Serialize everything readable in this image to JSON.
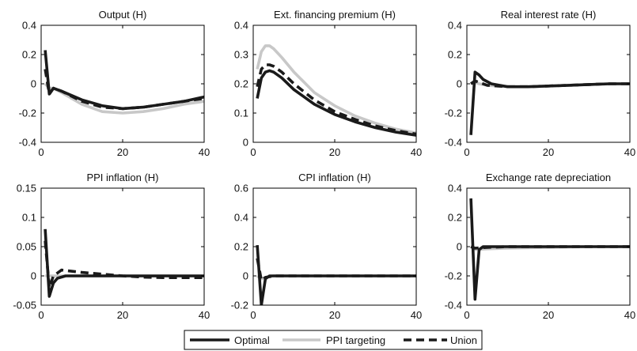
{
  "chart_data": [
    {
      "type": "line",
      "title": "Output (H)",
      "xlim": [
        0,
        40
      ],
      "ylim": [
        -0.4,
        0.4
      ],
      "xticks": [
        0,
        20,
        40
      ],
      "yticks": [
        -0.4,
        -0.2,
        0,
        0.2,
        0.4
      ],
      "ytick_labels": [
        "-0.4",
        "-0.2",
        "0",
        "0.2",
        "0.4"
      ],
      "series": [
        {
          "name": "Optimal",
          "points": [
            [
              1,
              0.23
            ],
            [
              2,
              -0.07
            ],
            [
              3,
              -0.03
            ],
            [
              5,
              -0.05
            ],
            [
              10,
              -0.11
            ],
            [
              15,
              -0.15
            ],
            [
              20,
              -0.17
            ],
            [
              25,
              -0.16
            ],
            [
              30,
              -0.14
            ],
            [
              35,
              -0.12
            ],
            [
              40,
              -0.09
            ]
          ]
        },
        {
          "name": "PPI targeting",
          "points": [
            [
              1,
              0.0
            ],
            [
              2,
              -0.03
            ],
            [
              3,
              -0.03
            ],
            [
              5,
              -0.06
            ],
            [
              10,
              -0.14
            ],
            [
              15,
              -0.19
            ],
            [
              20,
              -0.2
            ],
            [
              25,
              -0.19
            ],
            [
              30,
              -0.17
            ],
            [
              35,
              -0.14
            ],
            [
              40,
              -0.12
            ]
          ]
        },
        {
          "name": "Union",
          "points": [
            [
              1,
              0.1
            ],
            [
              2,
              -0.07
            ],
            [
              3,
              -0.03
            ],
            [
              5,
              -0.05
            ],
            [
              10,
              -0.12
            ],
            [
              15,
              -0.16
            ],
            [
              20,
              -0.17
            ],
            [
              25,
              -0.16
            ],
            [
              30,
              -0.14
            ],
            [
              35,
              -0.12
            ],
            [
              40,
              -0.1
            ]
          ]
        }
      ]
    },
    {
      "type": "line",
      "title": "Ext. financing premium (H)",
      "xlim": [
        0,
        40
      ],
      "ylim": [
        0,
        0.4
      ],
      "xticks": [
        0,
        20,
        40
      ],
      "yticks": [
        0,
        0.1,
        0.2,
        0.3,
        0.4
      ],
      "ytick_labels": [
        "0",
        "0.1",
        "0.2",
        "0.3",
        "0.4"
      ],
      "series": [
        {
          "name": "Optimal",
          "points": [
            [
              1,
              0.15
            ],
            [
              2,
              0.22
            ],
            [
              3,
              0.24
            ],
            [
              4,
              0.245
            ],
            [
              5,
              0.24
            ],
            [
              7,
              0.22
            ],
            [
              10,
              0.18
            ],
            [
              15,
              0.13
            ],
            [
              20,
              0.095
            ],
            [
              25,
              0.07
            ],
            [
              30,
              0.05
            ],
            [
              35,
              0.035
            ],
            [
              40,
              0.024
            ]
          ]
        },
        {
          "name": "PPI targeting",
          "points": [
            [
              1,
              0.25
            ],
            [
              2,
              0.31
            ],
            [
              3,
              0.33
            ],
            [
              4,
              0.33
            ],
            [
              5,
              0.32
            ],
            [
              7,
              0.29
            ],
            [
              10,
              0.24
            ],
            [
              15,
              0.17
            ],
            [
              20,
              0.125
            ],
            [
              25,
              0.09
            ],
            [
              30,
              0.065
            ],
            [
              35,
              0.045
            ],
            [
              40,
              0.032
            ]
          ]
        },
        {
          "name": "Union",
          "points": [
            [
              1,
              0.19
            ],
            [
              2,
              0.25
            ],
            [
              3,
              0.265
            ],
            [
              4,
              0.265
            ],
            [
              5,
              0.26
            ],
            [
              7,
              0.24
            ],
            [
              10,
              0.2
            ],
            [
              15,
              0.145
            ],
            [
              20,
              0.105
            ],
            [
              25,
              0.078
            ],
            [
              30,
              0.056
            ],
            [
              35,
              0.04
            ],
            [
              40,
              0.028
            ]
          ]
        }
      ]
    },
    {
      "type": "line",
      "title": "Real interest rate (H)",
      "xlim": [
        0,
        40
      ],
      "ylim": [
        -0.4,
        0.4
      ],
      "xticks": [
        0,
        20,
        40
      ],
      "yticks": [
        -0.4,
        -0.2,
        0,
        0.2,
        0.4
      ],
      "ytick_labels": [
        "-0.4",
        "-0.2",
        "0",
        "0.2",
        "0.4"
      ],
      "series": [
        {
          "name": "Optimal",
          "points": [
            [
              1,
              -0.35
            ],
            [
              2,
              0.08
            ],
            [
              3,
              0.06
            ],
            [
              4,
              0.03
            ],
            [
              6,
              0.0
            ],
            [
              8,
              -0.01
            ],
            [
              10,
              -0.02
            ],
            [
              15,
              -0.02
            ],
            [
              20,
              -0.015
            ],
            [
              25,
              -0.01
            ],
            [
              30,
              -0.005
            ],
            [
              35,
              0.0
            ],
            [
              40,
              0.0
            ]
          ]
        },
        {
          "name": "PPI targeting",
          "points": [
            [
              1,
              0.0
            ],
            [
              2,
              0.01
            ],
            [
              3,
              0.0
            ],
            [
              5,
              -0.01
            ],
            [
              10,
              -0.02
            ],
            [
              15,
              -0.02
            ],
            [
              20,
              -0.015
            ],
            [
              25,
              -0.01
            ],
            [
              30,
              -0.005
            ],
            [
              35,
              0.0
            ],
            [
              40,
              0.0
            ]
          ]
        },
        {
          "name": "Union",
          "points": [
            [
              1,
              0.0
            ],
            [
              2,
              0.02
            ],
            [
              3,
              0.01
            ],
            [
              5,
              -0.01
            ],
            [
              10,
              -0.02
            ],
            [
              15,
              -0.02
            ],
            [
              20,
              -0.015
            ],
            [
              25,
              -0.01
            ],
            [
              30,
              -0.005
            ],
            [
              35,
              0.0
            ],
            [
              40,
              0.0
            ]
          ]
        }
      ]
    },
    {
      "type": "line",
      "title": "PPI inflation (H)",
      "xlim": [
        0,
        40
      ],
      "ylim": [
        -0.05,
        0.15
      ],
      "xticks": [
        0,
        20,
        40
      ],
      "yticks": [
        -0.05,
        0,
        0.05,
        0.1,
        0.15
      ],
      "ytick_labels": [
        "-0.05",
        "0",
        "0.05",
        "0.1",
        "0.15"
      ],
      "series": [
        {
          "name": "Optimal",
          "points": [
            [
              1,
              0.08
            ],
            [
              2,
              -0.035
            ],
            [
              3,
              -0.012
            ],
            [
              4,
              -0.004
            ],
            [
              6,
              0.0
            ],
            [
              10,
              0.0
            ],
            [
              20,
              0.0
            ],
            [
              30,
              0.0
            ],
            [
              40,
              0.0
            ]
          ]
        },
        {
          "name": "PPI targeting",
          "points": [
            [
              1,
              0.0
            ],
            [
              2,
              0.0
            ],
            [
              10,
              0.0
            ],
            [
              20,
              0.0
            ],
            [
              30,
              0.0
            ],
            [
              40,
              0.0
            ]
          ]
        },
        {
          "name": "Union",
          "points": [
            [
              1,
              0.06
            ],
            [
              2,
              -0.02
            ],
            [
              3,
              0.0
            ],
            [
              5,
              0.01
            ],
            [
              10,
              0.006
            ],
            [
              15,
              0.003
            ],
            [
              20,
              0.0
            ],
            [
              25,
              -0.002
            ],
            [
              30,
              -0.003
            ],
            [
              35,
              -0.003
            ],
            [
              40,
              -0.003
            ]
          ]
        }
      ]
    },
    {
      "type": "line",
      "title": "CPI inflation (H)",
      "xlim": [
        0,
        40
      ],
      "ylim": [
        -0.2,
        0.6
      ],
      "xticks": [
        0,
        20,
        40
      ],
      "yticks": [
        -0.2,
        0,
        0.2,
        0.4,
        0.6
      ],
      "ytick_labels": [
        "-0.2",
        "0",
        "0.2",
        "0.4",
        "0.6"
      ],
      "series": [
        {
          "name": "Optimal",
          "points": [
            [
              1,
              0.21
            ],
            [
              2,
              -0.2
            ],
            [
              3,
              -0.02
            ],
            [
              4,
              0.0
            ],
            [
              10,
              0.0
            ],
            [
              20,
              0.0
            ],
            [
              30,
              0.0
            ],
            [
              40,
              0.0
            ]
          ]
        },
        {
          "name": "PPI targeting",
          "points": [
            [
              1,
              0.0
            ],
            [
              2,
              -0.02
            ],
            [
              3,
              -0.01
            ],
            [
              5,
              0.0
            ],
            [
              10,
              0.0
            ],
            [
              20,
              0.0
            ],
            [
              30,
              0.0
            ],
            [
              40,
              0.0
            ]
          ]
        },
        {
          "name": "Union",
          "points": [
            [
              1,
              0.12
            ],
            [
              2,
              -0.03
            ],
            [
              3,
              -0.01
            ],
            [
              5,
              0.0
            ],
            [
              10,
              0.0
            ],
            [
              20,
              0.0
            ],
            [
              30,
              0.0
            ],
            [
              40,
              0.0
            ]
          ]
        }
      ]
    },
    {
      "type": "line",
      "title": "Exchange rate depreciation",
      "xlim": [
        0,
        40
      ],
      "ylim": [
        -0.4,
        0.4
      ],
      "xticks": [
        0,
        20,
        40
      ],
      "yticks": [
        -0.4,
        -0.2,
        0,
        0.2,
        0.4
      ],
      "ytick_labels": [
        "-0.4",
        "-0.2",
        "0",
        "0.2",
        "0.4"
      ],
      "series": [
        {
          "name": "Optimal",
          "points": [
            [
              1,
              0.33
            ],
            [
              2,
              -0.36
            ],
            [
              3,
              -0.02
            ],
            [
              4,
              0.0
            ],
            [
              10,
              0.0
            ],
            [
              20,
              0.0
            ],
            [
              30,
              0.0
            ],
            [
              40,
              0.0
            ]
          ]
        },
        {
          "name": "PPI targeting",
          "points": [
            [
              1,
              0.0
            ],
            [
              2,
              -0.02
            ],
            [
              5,
              -0.015
            ],
            [
              10,
              -0.01
            ],
            [
              20,
              -0.005
            ],
            [
              30,
              0.0
            ],
            [
              40,
              0.0
            ]
          ]
        },
        {
          "name": "Union",
          "points": [
            [
              1,
              0.0
            ],
            [
              2,
              -0.01
            ],
            [
              5,
              -0.005
            ],
            [
              10,
              0.0
            ],
            [
              20,
              0.0
            ],
            [
              30,
              0.0
            ],
            [
              40,
              0.0
            ]
          ]
        }
      ]
    }
  ],
  "legend": {
    "items": [
      {
        "label": "Optimal",
        "color": "#1a1a1a",
        "style": "solid"
      },
      {
        "label": "PPI targeting",
        "color": "#c8c8c8",
        "style": "solid"
      },
      {
        "label": "Union",
        "color": "#1a1a1a",
        "style": "dashed"
      }
    ]
  },
  "colors": {
    "Optimal": "#1a1a1a",
    "PPI targeting": "#c8c8c8",
    "Union": "#1a1a1a"
  }
}
